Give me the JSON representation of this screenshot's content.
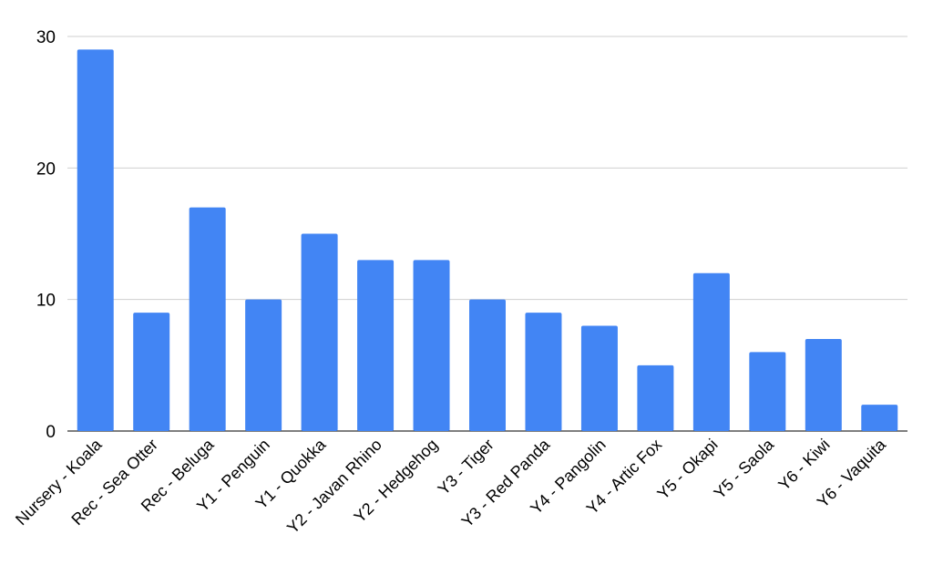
{
  "chart_data": {
    "type": "bar",
    "title": "",
    "xlabel": "",
    "ylabel": "",
    "categories": [
      "Nursery - Koala",
      "Rec - Sea Otter",
      "Rec - Beluga",
      "Y1 - Penguin",
      "Y1 - Quokka",
      "Y2 - Javan Rhino",
      "Y2 - Hedgehog",
      "Y3 - Tiger",
      "Y3 - Red Panda",
      "Y4 - Pangolin",
      "Y4 - Artic Fox",
      "Y5 - Okapi",
      "Y5 - Saola",
      "Y6 - Kiwi",
      "Y6 - Vaquita"
    ],
    "values": [
      29,
      9,
      17,
      10,
      15,
      13,
      13,
      10,
      9,
      8,
      5,
      12,
      6,
      7,
      2
    ],
    "ylim": [
      0,
      30
    ],
    "yticks": [
      "0",
      "10",
      "20",
      "30"
    ],
    "grid": true,
    "legend": "none",
    "bar_color": "#4285F4"
  }
}
